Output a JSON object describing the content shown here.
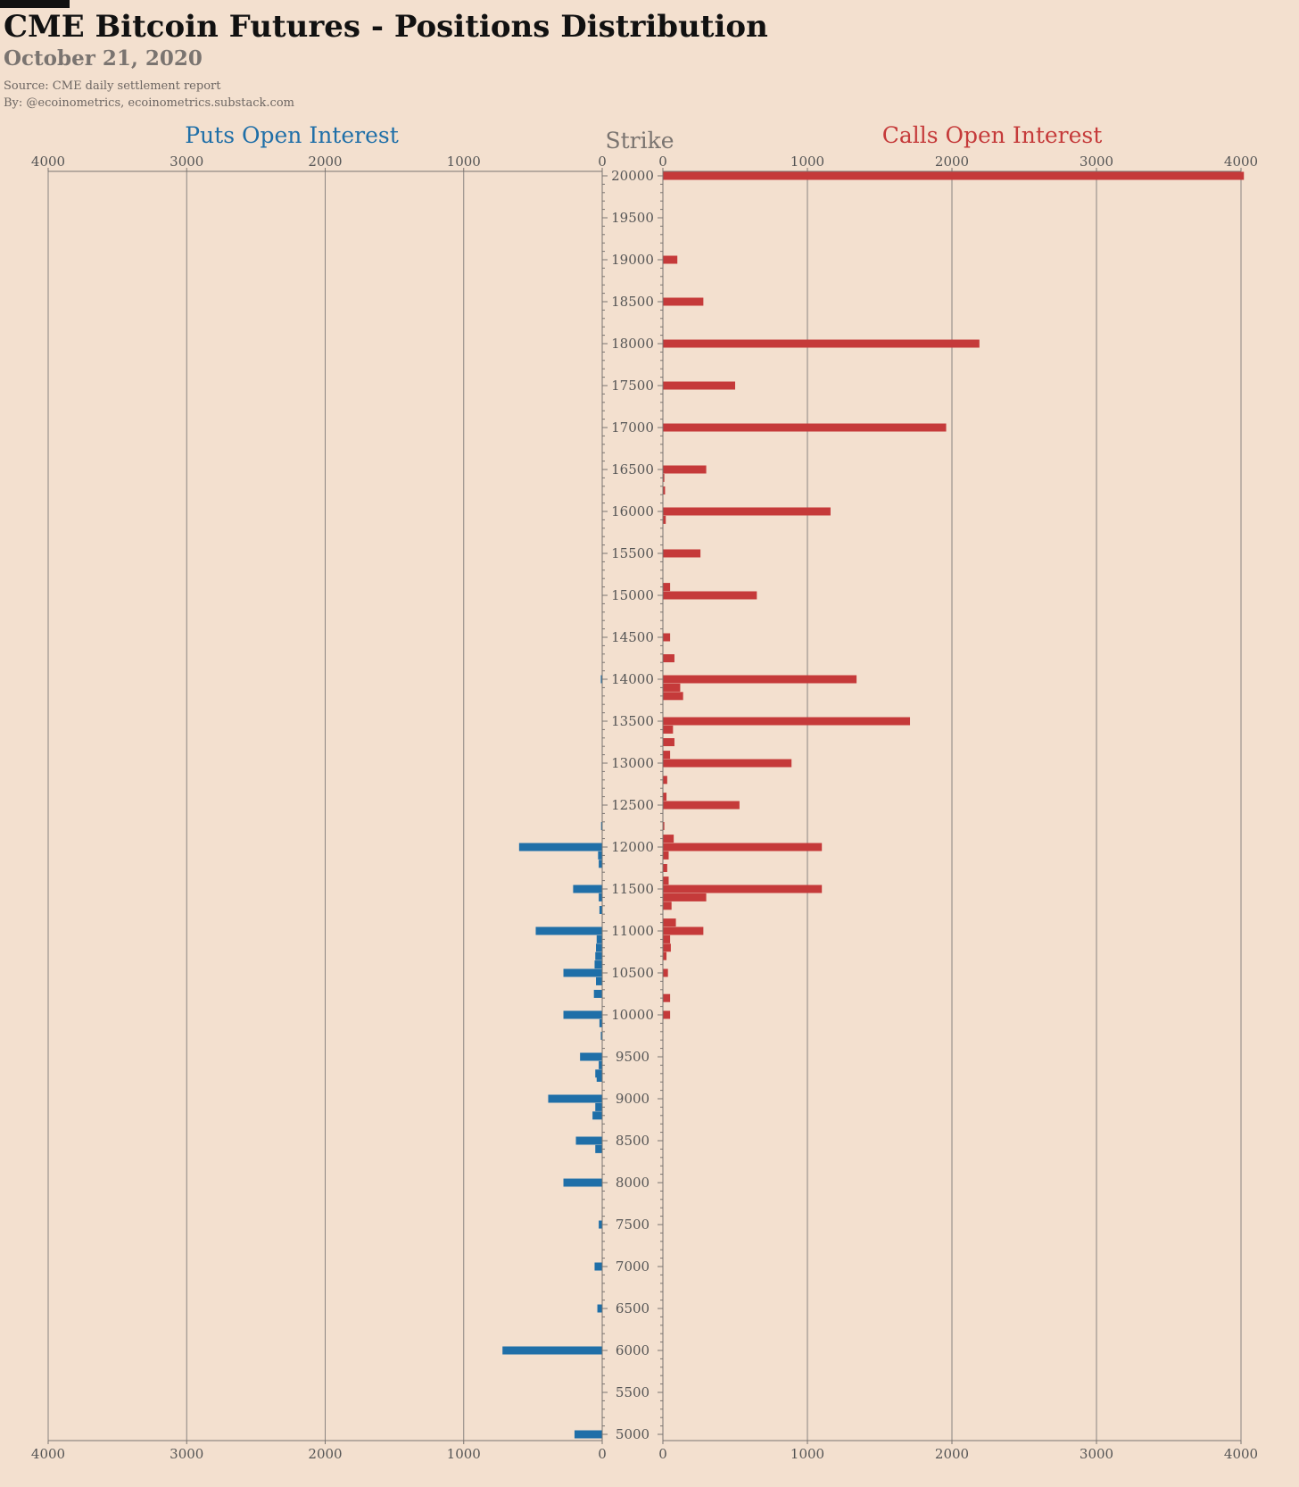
{
  "header": {
    "title": "CME Bitcoin Futures - Positions Distribution",
    "subtitle": "October 21, 2020",
    "source": "Source: CME daily settlement report",
    "byline": "By: @ecoinometrics, ecoinometrics.substack.com"
  },
  "colors": {
    "background": "#f3e0cf",
    "puts": "#1f6fa8",
    "calls": "#c53a3a",
    "axis": "#7a7470",
    "grid": "#8a8480"
  },
  "chart_data": {
    "type": "bar",
    "orientation": "horizontal",
    "layout": "back-to-back",
    "axis_labels": {
      "puts": "Puts Open Interest",
      "strike": "Strike",
      "calls": "Calls Open Interest"
    },
    "puts_axis": {
      "ticks": [
        "4000",
        "3000",
        "2000",
        "1000",
        "0"
      ],
      "lim": [
        0,
        4000
      ]
    },
    "calls_axis": {
      "ticks": [
        "0",
        "1000",
        "2000",
        "3000",
        "4000"
      ],
      "lim": [
        0,
        4000
      ]
    },
    "strike_axis": {
      "lim": [
        5000,
        20000
      ],
      "ticks": [
        "20000",
        "19500",
        "19000",
        "18500",
        "18000",
        "17500",
        "17000",
        "16500",
        "16000",
        "15500",
        "15000",
        "14500",
        "14000",
        "13500",
        "13000",
        "12500",
        "12000",
        "11500",
        "11000",
        "10500",
        "10000",
        "9500",
        "9000",
        "8500",
        "8000",
        "7500",
        "7000",
        "6500",
        "6000",
        "5500",
        "5000"
      ],
      "minor_step": 100
    },
    "grid": true,
    "series": [
      {
        "name": "Puts Open Interest",
        "side": "left",
        "points": [
          {
            "strike": 14000,
            "value": 10
          },
          {
            "strike": 12250,
            "value": 8
          },
          {
            "strike": 12000,
            "value": 600
          },
          {
            "strike": 11900,
            "value": 30
          },
          {
            "strike": 11800,
            "value": 25
          },
          {
            "strike": 11500,
            "value": 210
          },
          {
            "strike": 11400,
            "value": 25
          },
          {
            "strike": 11250,
            "value": 20
          },
          {
            "strike": 11000,
            "value": 480
          },
          {
            "strike": 10900,
            "value": 40
          },
          {
            "strike": 10800,
            "value": 45
          },
          {
            "strike": 10700,
            "value": 50
          },
          {
            "strike": 10600,
            "value": 55
          },
          {
            "strike": 10500,
            "value": 280
          },
          {
            "strike": 10400,
            "value": 45
          },
          {
            "strike": 10250,
            "value": 60
          },
          {
            "strike": 10000,
            "value": 280
          },
          {
            "strike": 9900,
            "value": 20
          },
          {
            "strike": 9750,
            "value": 10
          },
          {
            "strike": 9500,
            "value": 160
          },
          {
            "strike": 9400,
            "value": 25
          },
          {
            "strike": 9300,
            "value": 50
          },
          {
            "strike": 9250,
            "value": 40
          },
          {
            "strike": 9000,
            "value": 390
          },
          {
            "strike": 8900,
            "value": 50
          },
          {
            "strike": 8800,
            "value": 70
          },
          {
            "strike": 8500,
            "value": 190
          },
          {
            "strike": 8400,
            "value": 50
          },
          {
            "strike": 8000,
            "value": 280
          },
          {
            "strike": 7500,
            "value": 25
          },
          {
            "strike": 7000,
            "value": 55
          },
          {
            "strike": 6500,
            "value": 35
          },
          {
            "strike": 6000,
            "value": 720
          },
          {
            "strike": 5000,
            "value": 200
          }
        ]
      },
      {
        "name": "Calls Open Interest",
        "side": "right",
        "points": [
          {
            "strike": 20000,
            "value": 4020
          },
          {
            "strike": 19000,
            "value": 100
          },
          {
            "strike": 18500,
            "value": 280
          },
          {
            "strike": 18000,
            "value": 2190
          },
          {
            "strike": 17500,
            "value": 500
          },
          {
            "strike": 17000,
            "value": 1960
          },
          {
            "strike": 16500,
            "value": 300
          },
          {
            "strike": 16400,
            "value": 10
          },
          {
            "strike": 16250,
            "value": 15
          },
          {
            "strike": 16000,
            "value": 1160
          },
          {
            "strike": 15900,
            "value": 20
          },
          {
            "strike": 15500,
            "value": 260
          },
          {
            "strike": 15100,
            "value": 50
          },
          {
            "strike": 15000,
            "value": 650
          },
          {
            "strike": 14500,
            "value": 50
          },
          {
            "strike": 14250,
            "value": 80
          },
          {
            "strike": 14000,
            "value": 1340
          },
          {
            "strike": 13900,
            "value": 120
          },
          {
            "strike": 13800,
            "value": 140
          },
          {
            "strike": 13500,
            "value": 1710
          },
          {
            "strike": 13400,
            "value": 70
          },
          {
            "strike": 13250,
            "value": 80
          },
          {
            "strike": 13100,
            "value": 50
          },
          {
            "strike": 13000,
            "value": 890
          },
          {
            "strike": 12800,
            "value": 30
          },
          {
            "strike": 12600,
            "value": 25
          },
          {
            "strike": 12500,
            "value": 530
          },
          {
            "strike": 12250,
            "value": 10
          },
          {
            "strike": 12100,
            "value": 75
          },
          {
            "strike": 12000,
            "value": 1100
          },
          {
            "strike": 11900,
            "value": 40
          },
          {
            "strike": 11750,
            "value": 30
          },
          {
            "strike": 11600,
            "value": 40
          },
          {
            "strike": 11500,
            "value": 1100
          },
          {
            "strike": 11400,
            "value": 300
          },
          {
            "strike": 11300,
            "value": 60
          },
          {
            "strike": 11100,
            "value": 90
          },
          {
            "strike": 11000,
            "value": 280
          },
          {
            "strike": 10900,
            "value": 50
          },
          {
            "strike": 10800,
            "value": 55
          },
          {
            "strike": 10700,
            "value": 25
          },
          {
            "strike": 10500,
            "value": 35
          },
          {
            "strike": 10200,
            "value": 50
          },
          {
            "strike": 10000,
            "value": 50
          }
        ]
      }
    ]
  }
}
